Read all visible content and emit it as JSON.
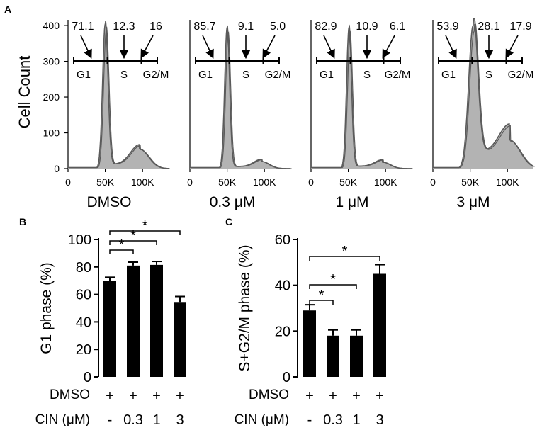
{
  "panel_letters": [
    "A",
    "B",
    "C"
  ],
  "chart_data": [
    {
      "panel": "A",
      "type": "area",
      "ylabel": "Cell Count",
      "yticks": [
        0,
        100,
        200,
        300,
        400
      ],
      "xticks": [
        {
          "v": 0,
          "label": "0"
        },
        {
          "v": 50000,
          "label": "50K"
        },
        {
          "v": 100000,
          "label": "100K"
        }
      ],
      "xlim": [
        0,
        135000
      ],
      "ylim": [
        0,
        420
      ],
      "phase_labels": [
        "G1",
        "S",
        "G2/M"
      ],
      "colors": {
        "fill": "#b3b3b3",
        "fill_light": "#d4d4d4",
        "line": "#5a5a5a"
      },
      "histograms": [
        {
          "name": "DMSO",
          "g1": 71.1,
          "s": 12.3,
          "g2m": 16,
          "g1_label": "71.1",
          "s_label": "12.3",
          "g2m_label": "16",
          "peak1": {
            "x": 50000,
            "y": 405,
            "w": 3600
          },
          "peak2": {
            "x": 96000,
            "y": 55,
            "w": 12000
          },
          "s_level": 12
        },
        {
          "name": "0.3 μM",
          "g1": 85.7,
          "s": 9.1,
          "g2m": 5.0,
          "g1_label": "85.7",
          "s_label": "9.1",
          "g2m_label": "5.0",
          "peak1": {
            "x": 50000,
            "y": 395,
            "w": 3300
          },
          "peak2": {
            "x": 96000,
            "y": 20,
            "w": 10000
          },
          "s_level": 6
        },
        {
          "name": "1 μM",
          "g1": 82.9,
          "s": 10.9,
          "g2m": 6.1,
          "g1_label": "82.9",
          "s_label": "10.9",
          "g2m_label": "6.1",
          "peak1": {
            "x": 51000,
            "y": 395,
            "w": 3300
          },
          "peak2": {
            "x": 96000,
            "y": 18,
            "w": 10000
          },
          "s_level": 7
        },
        {
          "name": "3 μM",
          "g1": 53.9,
          "s": 28.1,
          "g2m": 17.9,
          "g1_label": "53.9",
          "s_label": "28.1",
          "g2m_label": "17.9",
          "peak1": {
            "x": 54000,
            "y": 400,
            "w": 6000
          },
          "peak2": {
            "x": 103000,
            "y": 80,
            "w": 14000
          },
          "s_level": 45
        }
      ]
    },
    {
      "panel": "B",
      "type": "bar",
      "ylabel": "G1 phase (%)",
      "ylim": [
        0,
        100
      ],
      "yticks": [
        0,
        20,
        40,
        60,
        80,
        100
      ],
      "values": [
        70,
        81,
        81.5,
        54.5
      ],
      "errors": [
        2.5,
        2.5,
        2.5,
        4
      ],
      "row_labels": [
        "DMSO",
        "CIN (μM)"
      ],
      "dmso_row": [
        "+",
        "+",
        "+",
        "+"
      ],
      "cin_row": [
        "-",
        "0.3",
        "1",
        "3"
      ],
      "significance": [
        {
          "from": 0,
          "to": 1,
          "label": "*"
        },
        {
          "from": 0,
          "to": 2,
          "label": "*"
        },
        {
          "from": 0,
          "to": 3,
          "label": "*"
        }
      ]
    },
    {
      "panel": "C",
      "type": "bar",
      "ylabel": "S+G2/M phase (%)",
      "ylim": [
        0,
        60
      ],
      "yticks": [
        0,
        20,
        40,
        60
      ],
      "values": [
        29,
        18,
        18,
        45
      ],
      "errors": [
        2.5,
        2.5,
        2.5,
        4
      ],
      "row_labels": [
        "DMSO",
        "CIN (μM)"
      ],
      "dmso_row": [
        "+",
        "+",
        "+",
        "+"
      ],
      "cin_row": [
        "-",
        "0.3",
        "1",
        "3"
      ],
      "significance": [
        {
          "from": 0,
          "to": 1,
          "label": "*"
        },
        {
          "from": 0,
          "to": 2,
          "label": "*"
        },
        {
          "from": 0,
          "to": 3,
          "label": "*"
        }
      ]
    }
  ]
}
